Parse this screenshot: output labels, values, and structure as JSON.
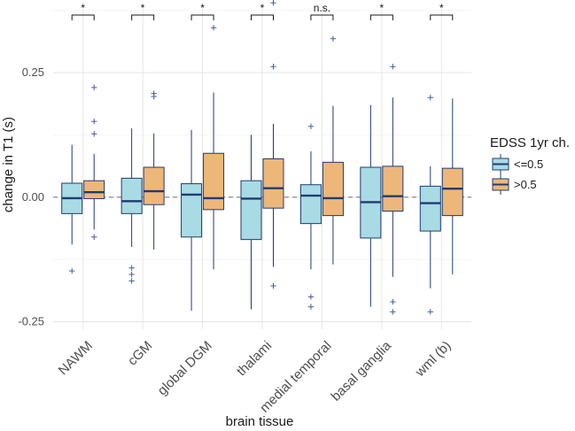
{
  "chart_data": {
    "type": "boxplot",
    "title": "",
    "xlabel": "brain tissue",
    "ylabel": "change in T1 (s)",
    "ylim": [
      -0.265,
      0.385
    ],
    "yticks": [
      -0.25,
      0.0,
      0.25
    ],
    "ytick_labels": [
      "-0.25",
      "0.00",
      "0.25"
    ],
    "reference_line": 0.0,
    "legend": {
      "title": "EDSS 1yr ch.",
      "position": "right",
      "entries": [
        {
          "label": "<=0.5",
          "color": "#a8dbe3"
        },
        {
          "label": ">0.5",
          "color": "#edb77a"
        }
      ]
    },
    "colors": {
      "box_edge": "#1f3b73",
      "median": "#1f3b73",
      "outlier": "#4a5a9a",
      "reference": "#7f7f7f"
    },
    "categories": [
      "NAWM",
      "cGM",
      "global DGM",
      "thalami",
      "medial temporal",
      "basal ganglia",
      "wml (b)"
    ],
    "significance": [
      "*",
      "*",
      "*",
      "*",
      "n.s.",
      "*",
      "*"
    ],
    "series": [
      {
        "name": "<=0.5",
        "boxes": [
          {
            "min": -0.095,
            "q1": -0.033,
            "median": -0.002,
            "q3": 0.028,
            "max": 0.105,
            "outliers": [
              -0.148
            ]
          },
          {
            "min": -0.1,
            "q1": -0.033,
            "median": -0.008,
            "q3": 0.038,
            "max": 0.138,
            "outliers": [
              -0.142,
              -0.155,
              -0.168
            ]
          },
          {
            "min": -0.228,
            "q1": -0.08,
            "median": 0.005,
            "q3": 0.027,
            "max": 0.135,
            "outliers": []
          },
          {
            "min": -0.225,
            "q1": -0.085,
            "median": -0.003,
            "q3": 0.033,
            "max": 0.125,
            "outliers": []
          },
          {
            "min": -0.145,
            "q1": -0.053,
            "median": 0.003,
            "q3": 0.025,
            "max": 0.092,
            "outliers": [
              0.142,
              -0.2,
              -0.22
            ]
          },
          {
            "min": -0.22,
            "q1": -0.082,
            "median": -0.01,
            "q3": 0.06,
            "max": 0.185,
            "outliers": []
          },
          {
            "min": -0.183,
            "q1": -0.068,
            "median": -0.012,
            "q3": 0.022,
            "max": 0.062,
            "outliers": [
              0.2,
              -0.23
            ]
          }
        ]
      },
      {
        "name": ">0.5",
        "boxes": [
          {
            "min": -0.065,
            "q1": -0.003,
            "median": 0.01,
            "q3": 0.033,
            "max": 0.087,
            "outliers": [
              0.22,
              0.152,
              0.127,
              -0.08
            ]
          },
          {
            "min": -0.105,
            "q1": -0.015,
            "median": 0.012,
            "q3": 0.06,
            "max": 0.128,
            "outliers": [
              0.208,
              0.202
            ]
          },
          {
            "min": -0.145,
            "q1": -0.025,
            "median": -0.002,
            "q3": 0.088,
            "max": 0.21,
            "outliers": [
              0.34
            ]
          },
          {
            "min": -0.14,
            "q1": -0.022,
            "median": 0.018,
            "q3": 0.077,
            "max": 0.147,
            "outliers": [
              0.39,
              0.262,
              -0.178
            ]
          },
          {
            "min": -0.135,
            "q1": -0.037,
            "median": -0.002,
            "q3": 0.07,
            "max": 0.183,
            "outliers": [
              0.318
            ]
          },
          {
            "min": -0.16,
            "q1": -0.028,
            "median": 0.002,
            "q3": 0.062,
            "max": 0.2,
            "outliers": [
              0.262,
              -0.21,
              -0.23
            ]
          },
          {
            "min": -0.155,
            "q1": -0.037,
            "median": 0.017,
            "q3": 0.058,
            "max": 0.198,
            "outliers": []
          }
        ]
      }
    ]
  }
}
